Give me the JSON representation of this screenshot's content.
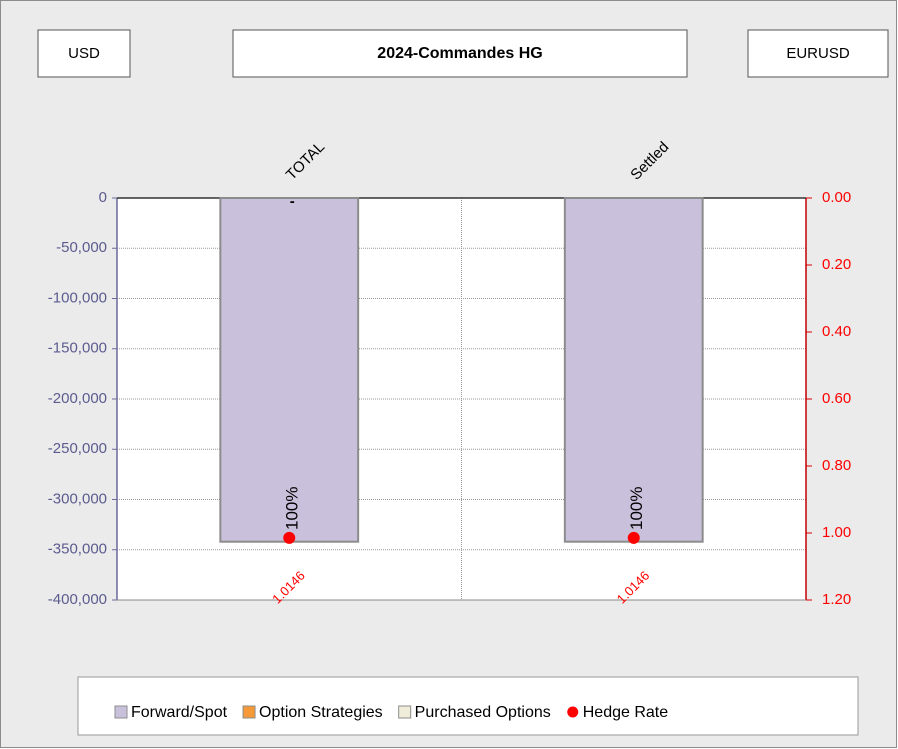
{
  "chart_data": {
    "type": "bar",
    "title": "2024-Commandes HG",
    "header_left": "USD",
    "header_right": "EURUSD",
    "categories": [
      "TOTAL",
      "Settled"
    ],
    "series": [
      {
        "name": "Forward/Spot",
        "color": "#c9c0dc",
        "values": [
          -342000,
          -342000
        ]
      },
      {
        "name": "Option Strategies",
        "color": "#f59a36",
        "values": [
          0,
          0
        ],
        "value_labels": [
          "-",
          null
        ]
      },
      {
        "name": "Purchased Options",
        "color": "#efedd9",
        "values": [
          0,
          0
        ]
      },
      {
        "name": "Hedge Rate",
        "color": "#ff0000",
        "type": "scatter",
        "axis": "y2",
        "values": [
          1.0146,
          1.0146
        ]
      }
    ],
    "annotations": [
      "100%",
      "100%"
    ],
    "ylim": [
      -400000,
      0
    ],
    "yticks": [
      0,
      {
        "value": -50000,
        "label": "-50,000"
      },
      {
        "value": -100000,
        "label": "-100,000"
      },
      {
        "value": -150000,
        "label": "-150,000"
      },
      {
        "value": -200000,
        "label": "-200,000"
      },
      {
        "value": -250000,
        "label": "-250,000"
      },
      {
        "value": -300000,
        "label": "-300,000"
      },
      {
        "value": -350000,
        "label": "-350,000"
      },
      {
        "value": -400000,
        "label": "-400,000"
      }
    ],
    "y2lim": [
      0,
      1.2
    ],
    "y2_inverted": true,
    "y2ticks": [
      {
        "value": 0,
        "label": "0.00"
      },
      {
        "value": 0.2,
        "label": "0.20"
      },
      {
        "value": 0.4,
        "label": "0.40"
      },
      {
        "value": 0.6,
        "label": "0.60"
      },
      {
        "value": 0.8,
        "label": "0.80"
      },
      {
        "value": 1.0,
        "label": "1.00"
      },
      {
        "value": 1.2,
        "label": "1.20"
      }
    ],
    "grid": true,
    "legend": "bottom"
  }
}
